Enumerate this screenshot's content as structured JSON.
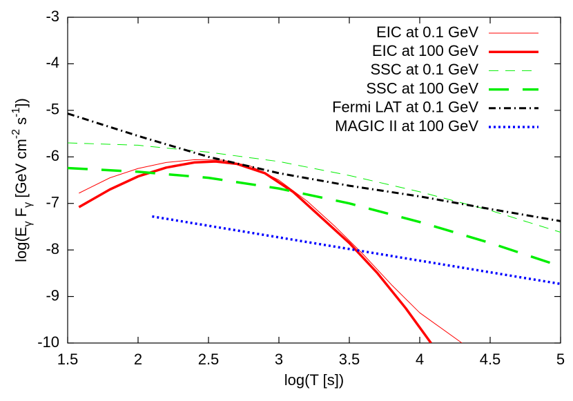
{
  "chart_data": {
    "type": "line",
    "x_label": "log(T [s])",
    "y_label": [
      "log(E",
      "γ",
      " F",
      "γ",
      " [GeV cm",
      "-2",
      " s",
      "-1",
      "])"
    ],
    "xlim": [
      1.5,
      5
    ],
    "ylim": [
      -10,
      -3
    ],
    "xticks": [
      1.5,
      2,
      2.5,
      3,
      3.5,
      4,
      4.5,
      5
    ],
    "yticks": [
      -10,
      -9,
      -8,
      -7,
      -6,
      -5,
      -4,
      -3
    ],
    "legend": "upper right",
    "series": [
      {
        "name": "EIC at 0.1 GeV",
        "color": "#ff0000",
        "width": 1,
        "dash": "solid",
        "x": [
          1.58,
          1.8,
          2,
          2.2,
          2.4,
          2.6,
          2.8,
          3.0,
          3.2,
          3.4,
          3.6,
          3.8,
          4.0,
          4.3
        ],
        "values": [
          -6.78,
          -6.45,
          -6.25,
          -6.12,
          -6.06,
          -6.07,
          -6.2,
          -6.5,
          -6.95,
          -7.5,
          -8.1,
          -8.75,
          -9.35,
          -10
        ]
      },
      {
        "name": "EIC at 100 GeV",
        "color": "#ff0000",
        "width": 3.5,
        "dash": "solid",
        "x": [
          1.58,
          1.8,
          2,
          2.2,
          2.4,
          2.55,
          2.7,
          2.9,
          3.1,
          3.3,
          3.5,
          3.7,
          3.9,
          4.08
        ],
        "values": [
          -7.08,
          -6.7,
          -6.42,
          -6.23,
          -6.12,
          -6.1,
          -6.15,
          -6.35,
          -6.75,
          -7.3,
          -7.85,
          -8.5,
          -9.25,
          -10
        ]
      },
      {
        "name": "SSC at 0.1 GeV",
        "color": "#00ee00",
        "width": 1,
        "dash": "dashed",
        "x": [
          1.5,
          2,
          2.5,
          3,
          3.5,
          4,
          4.5,
          5
        ],
        "values": [
          -5.7,
          -5.75,
          -5.9,
          -6.1,
          -6.4,
          -6.75,
          -7.15,
          -7.62
        ]
      },
      {
        "name": "SSC at 100 GeV",
        "color": "#00ee00",
        "width": 3.5,
        "dash": "dashed",
        "x": [
          1.5,
          2,
          2.5,
          3,
          3.5,
          4,
          4.5,
          5
        ],
        "values": [
          -6.24,
          -6.32,
          -6.45,
          -6.68,
          -7.0,
          -7.4,
          -7.85,
          -8.35
        ]
      },
      {
        "name": "Fermi LAT at 0.1 GeV",
        "color": "#000000",
        "width": 3,
        "dash": "dashdot",
        "x": [
          1.5,
          2,
          2.5,
          3,
          3.5,
          4,
          4.5,
          5
        ],
        "values": [
          -5.07,
          -5.55,
          -6.0,
          -6.35,
          -6.62,
          -6.85,
          -7.12,
          -7.38
        ]
      },
      {
        "name": "MAGIC II at 100 GeV",
        "color": "#0000ff",
        "width": 3.5,
        "dash": "dotted",
        "x": [
          2.1,
          3,
          4,
          5
        ],
        "values": [
          -7.28,
          -7.73,
          -8.23,
          -8.73
        ]
      }
    ]
  }
}
